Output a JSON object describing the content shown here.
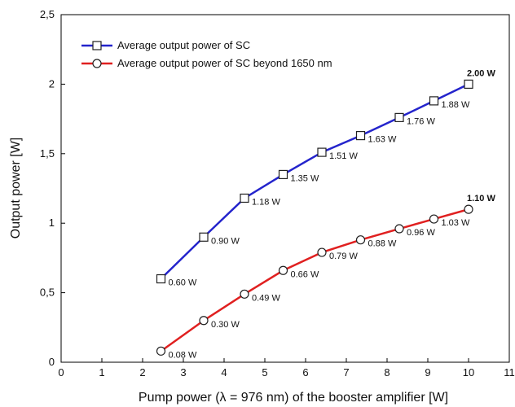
{
  "chart_data": {
    "type": "line",
    "title": "",
    "xlabel": "Pump power (λ = 976 nm) of the booster amplifier  [W]",
    "ylabel": "Output power  [W]",
    "xlim": [
      0,
      11
    ],
    "ylim": [
      0,
      2.5
    ],
    "x_ticks": [
      "0",
      "1",
      "2",
      "3",
      "4",
      "5",
      "6",
      "7",
      "8",
      "9",
      "10",
      "11"
    ],
    "y_ticks": [
      "0",
      "0,5",
      "1",
      "1,5",
      "2",
      "2,5"
    ],
    "grid": false,
    "legend_position": "top-left",
    "series": [
      {
        "name": "Average output power of SC",
        "color": "#2424cc",
        "marker": "square",
        "x": [
          2.45,
          3.5,
          4.5,
          5.45,
          6.4,
          7.35,
          8.3,
          9.15,
          10.0
        ],
        "y": [
          0.6,
          0.9,
          1.18,
          1.35,
          1.51,
          1.63,
          1.76,
          1.88,
          2.0
        ],
        "labels": [
          "0.60 W",
          "0.90 W",
          "1.18 W",
          "1.35 W",
          "1.51 W",
          "1.63 W",
          "1.76 W",
          "1.88 W",
          "2.00 W"
        ]
      },
      {
        "name": "Average output power of SC beyond 1650 nm",
        "color": "#e02020",
        "marker": "circle",
        "x": [
          2.45,
          3.5,
          4.5,
          5.45,
          6.4,
          7.35,
          8.3,
          9.15,
          10.0
        ],
        "y": [
          0.08,
          0.3,
          0.49,
          0.66,
          0.79,
          0.88,
          0.96,
          1.03,
          1.1
        ],
        "labels": [
          "0.08 W",
          "0.30 W",
          "0.49 W",
          "0.66 W",
          "0.79 W",
          "0.88 W",
          "0.96 W",
          "1.03 W",
          "1.10 W"
        ]
      }
    ]
  }
}
